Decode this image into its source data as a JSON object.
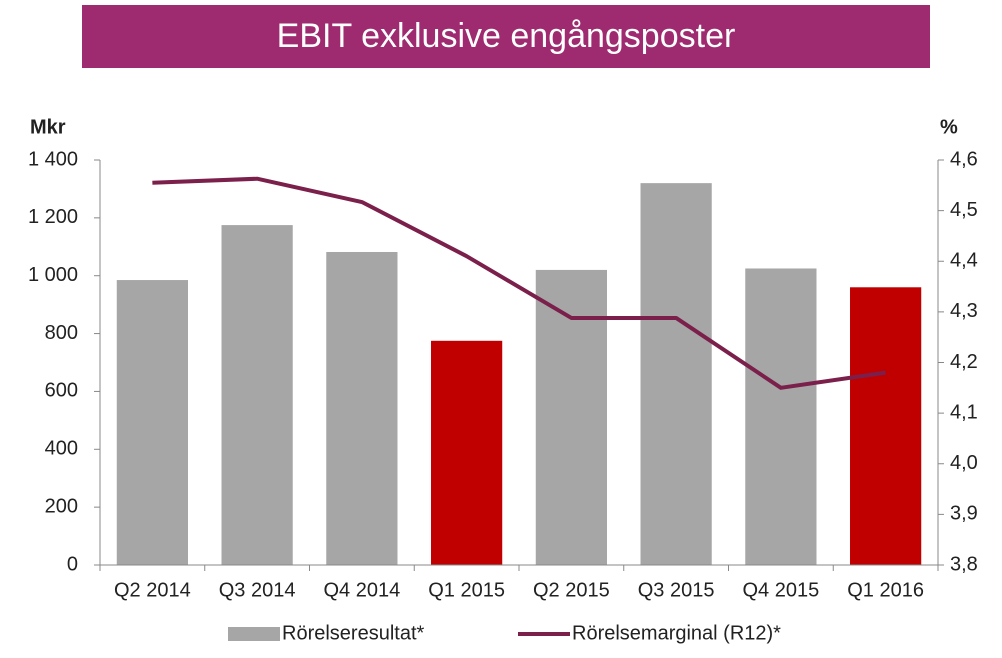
{
  "chart_data": {
    "type": "bar-line",
    "title": "EBIT exklusive engångsposter",
    "y_label": "Mkr",
    "y2_label": "%",
    "categories": [
      "Q2 2014",
      "Q3 2014",
      "Q4 2014",
      "Q1 2015",
      "Q2 2015",
      "Q3 2015",
      "Q4 2015",
      "Q1 2016"
    ],
    "series": [
      {
        "name": "Rörelseresultat*",
        "type": "bar",
        "color": "#a6a6a6",
        "colors": [
          "#a6a6a6",
          "#a6a6a6",
          "#a6a6a6",
          "#c00000",
          "#a6a6a6",
          "#a6a6a6",
          "#a6a6a6",
          "#c00000"
        ],
        "values": [
          985,
          1175,
          1082,
          775,
          1020,
          1320,
          1025,
          960
        ]
      },
      {
        "name": "Rörelsemarginal (R12)*",
        "type": "line",
        "color": "#7b1f4b",
        "axis": "y2",
        "values": [
          4.555,
          4.563,
          4.517,
          4.41,
          4.288,
          4.288,
          4.15,
          4.18
        ]
      }
    ],
    "ylim": [
      0,
      1400
    ],
    "yticks": [
      0,
      200,
      400,
      600,
      800,
      {
        "value": 1000,
        "label": "1 000"
      },
      {
        "value": 1200,
        "label": "1 200"
      },
      {
        "value": 1400,
        "label": "1 400"
      }
    ],
    "y2lim": [
      3.8,
      4.6
    ],
    "y2ticks": [
      {
        "value": 3.8,
        "label": "3,8"
      },
      {
        "value": 3.9,
        "label": "3,9"
      },
      {
        "value": 4.0,
        "label": "4,0"
      },
      {
        "value": 4.1,
        "label": "4,1"
      },
      {
        "value": 4.2,
        "label": "4,2"
      },
      {
        "value": 4.3,
        "label": "4,3"
      },
      {
        "value": 4.4,
        "label": "4,4"
      },
      {
        "value": 4.5,
        "label": "4,5"
      },
      {
        "value": 4.6,
        "label": "4,6"
      }
    ],
    "title_color": "#9e2a6f",
    "legend": "bottom"
  }
}
